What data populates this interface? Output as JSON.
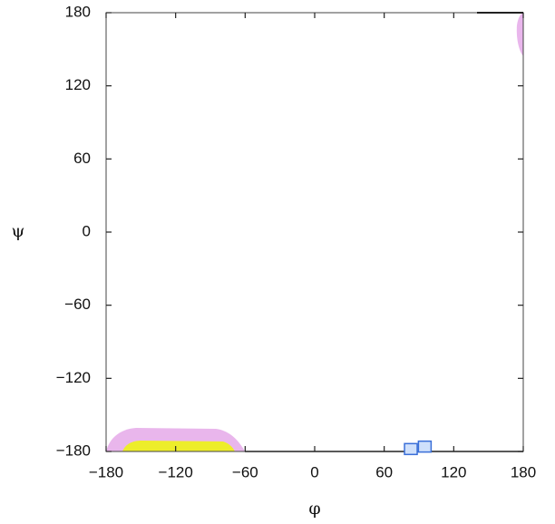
{
  "chart_data": {
    "type": "scatter",
    "x_label": "φ",
    "y_label": "ψ",
    "x": [
      83,
      95
    ],
    "values": [
      -178,
      -176
    ],
    "color": "#3a6fd8",
    "xlim": [
      -180,
      180
    ],
    "ylim": [
      -180,
      180
    ],
    "xticks": [
      {
        "value": -180,
        "label": "−180"
      },
      {
        "value": -120,
        "label": "−120"
      },
      {
        "value": -60,
        "label": "−60"
      },
      0,
      60,
      120,
      180
    ],
    "yticks": [
      {
        "value": -180,
        "label": "−180"
      },
      {
        "value": -120,
        "label": "−120"
      },
      {
        "value": -60,
        "label": "−60"
      },
      0,
      60,
      120,
      180
    ],
    "grid": false
  }
}
